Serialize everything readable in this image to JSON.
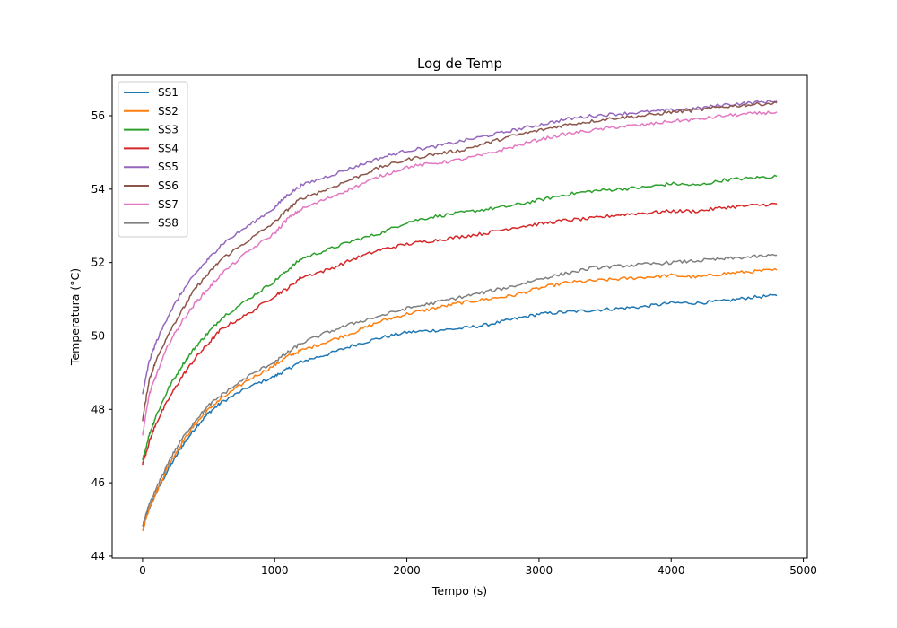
{
  "chart_data": {
    "type": "line",
    "title": "Log de Temp",
    "xlabel": "Tempo (s)",
    "ylabel": "Temperatura (°C)",
    "xlim": [
      -230,
      5030
    ],
    "ylim": [
      43.95,
      57.1
    ],
    "x_ticks": [
      0,
      1000,
      2000,
      3000,
      4000,
      5000
    ],
    "y_ticks": [
      44,
      46,
      48,
      50,
      52,
      54,
      56
    ],
    "grid": false,
    "legend_position": "upper-left",
    "x": [
      0,
      50,
      100,
      200,
      300,
      400,
      500,
      600,
      800,
      1000,
      1100,
      1200,
      1400,
      1600,
      1800,
      2000,
      2200,
      2400,
      2600,
      2800,
      3000,
      3200,
      3400,
      3600,
      3800,
      4000,
      4200,
      4400,
      4600,
      4800
    ],
    "series": [
      {
        "name": "SS1",
        "color": "#1f77b4",
        "values": [
          44.8,
          45.3,
          45.7,
          46.4,
          47.0,
          47.5,
          47.9,
          48.2,
          48.6,
          48.9,
          49.1,
          49.3,
          49.5,
          49.75,
          49.95,
          50.1,
          50.15,
          50.2,
          50.3,
          50.45,
          50.6,
          50.65,
          50.7,
          50.75,
          50.8,
          50.9,
          50.9,
          50.95,
          51.05,
          51.1
        ]
      },
      {
        "name": "SS2",
        "color": "#ff7f0e",
        "values": [
          44.7,
          45.3,
          45.7,
          46.5,
          47.1,
          47.6,
          48.0,
          48.3,
          48.8,
          49.2,
          49.45,
          49.6,
          49.85,
          50.1,
          50.4,
          50.6,
          50.75,
          50.9,
          51.0,
          51.1,
          51.3,
          51.45,
          51.5,
          51.55,
          51.6,
          51.65,
          51.6,
          51.7,
          51.75,
          51.8
        ]
      },
      {
        "name": "SS3",
        "color": "#2ca02c",
        "values": [
          46.6,
          47.3,
          47.8,
          48.6,
          49.2,
          49.7,
          50.1,
          50.5,
          51.0,
          51.5,
          51.8,
          52.1,
          52.35,
          52.6,
          52.8,
          53.1,
          53.25,
          53.35,
          53.45,
          53.55,
          53.7,
          53.85,
          53.95,
          54.0,
          54.05,
          54.15,
          54.1,
          54.25,
          54.3,
          54.35
        ]
      },
      {
        "name": "SS4",
        "color": "#d62728",
        "values": [
          46.5,
          47.1,
          47.6,
          48.3,
          48.9,
          49.4,
          49.8,
          50.2,
          50.6,
          51.1,
          51.3,
          51.6,
          51.8,
          52.1,
          52.35,
          52.5,
          52.6,
          52.7,
          52.8,
          52.95,
          53.05,
          53.15,
          53.2,
          53.3,
          53.35,
          53.4,
          53.4,
          53.5,
          53.55,
          53.6
        ]
      },
      {
        "name": "SS5",
        "color": "#9467bd",
        "values": [
          48.4,
          49.3,
          49.8,
          50.6,
          51.2,
          51.7,
          52.1,
          52.5,
          53.0,
          53.5,
          53.85,
          54.1,
          54.35,
          54.6,
          54.85,
          55.05,
          55.15,
          55.3,
          55.45,
          55.6,
          55.75,
          55.9,
          56.0,
          56.05,
          56.1,
          56.15,
          56.2,
          56.3,
          56.35,
          56.4
        ]
      },
      {
        "name": "SS6",
        "color": "#8c564b",
        "values": [
          47.7,
          48.8,
          49.3,
          50.1,
          50.7,
          51.3,
          51.7,
          52.1,
          52.6,
          53.1,
          53.45,
          53.75,
          54.0,
          54.3,
          54.6,
          54.8,
          54.95,
          55.05,
          55.25,
          55.45,
          55.6,
          55.75,
          55.85,
          55.95,
          56.0,
          56.1,
          56.15,
          56.25,
          56.3,
          56.35
        ]
      },
      {
        "name": "SS7",
        "color": "#e377c2",
        "values": [
          47.3,
          48.4,
          48.9,
          49.8,
          50.4,
          50.9,
          51.3,
          51.7,
          52.3,
          52.8,
          53.2,
          53.45,
          53.75,
          54.05,
          54.35,
          54.6,
          54.7,
          54.8,
          54.95,
          55.15,
          55.35,
          55.5,
          55.6,
          55.7,
          55.75,
          55.85,
          55.9,
          56.0,
          56.05,
          56.1
        ]
      },
      {
        "name": "SS8",
        "color": "#7f7f7f",
        "values": [
          44.8,
          45.4,
          45.8,
          46.6,
          47.2,
          47.7,
          48.1,
          48.4,
          48.9,
          49.3,
          49.55,
          49.8,
          50.1,
          50.35,
          50.55,
          50.75,
          50.9,
          51.05,
          51.2,
          51.35,
          51.55,
          51.7,
          51.85,
          51.9,
          51.95,
          52.0,
          52.05,
          52.1,
          52.15,
          52.2
        ]
      }
    ]
  }
}
